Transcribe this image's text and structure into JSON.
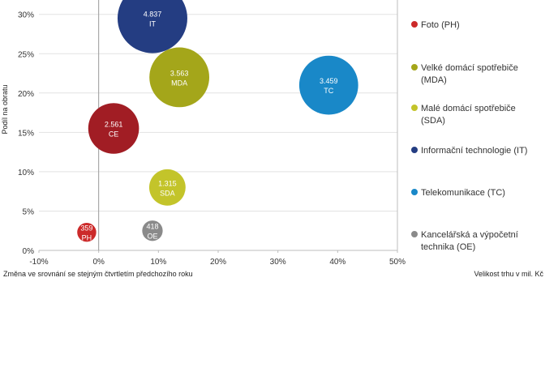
{
  "chart_data": {
    "type": "scatter",
    "subtype": "bubble",
    "title": "",
    "xlabel": "Změna ve srovnání se stejným čtvrtletím předchozího roku",
    "ylabel": "Podíl na obratu",
    "size_label": "Velikost trhu v mil. Kč",
    "xlim": [
      -0.1,
      0.5
    ],
    "ylim": [
      0,
      0.31
    ],
    "x_ticks": [
      -0.1,
      0,
      0.1,
      0.2,
      0.3,
      0.4,
      0.5
    ],
    "x_tick_labels": [
      "-10%",
      "0%",
      "10%",
      "20%",
      "30%",
      "40%",
      "50%"
    ],
    "y_ticks": [
      0,
      0.05,
      0.1,
      0.15,
      0.2,
      0.25,
      0.3
    ],
    "y_tick_labels": [
      "0%",
      "5%",
      "10%",
      "15%",
      "20%",
      "25%",
      "30%"
    ],
    "grid": "horizontal",
    "legend_position": "right",
    "series": [
      {
        "code": "PH",
        "name": "Foto (PH)",
        "x": -0.02,
        "y": 0.023,
        "size": 359,
        "size_label": "359",
        "color": "#cc2a2a"
      },
      {
        "code": "MDA",
        "name": "Velké domácí spotřebiče (MDA)",
        "x": 0.135,
        "y": 0.22,
        "size": 3563,
        "size_label": "3.563",
        "color": "#a4a61a"
      },
      {
        "code": "SDA",
        "name": "Malé domácí spotřebiče (SDA)",
        "x": 0.115,
        "y": 0.08,
        "size": 1315,
        "size_label": "1.315",
        "color": "#c3c42a"
      },
      {
        "code": "IT",
        "name": "Informační technologie (IT)",
        "x": 0.09,
        "y": 0.295,
        "size": 4837,
        "size_label": "4.837",
        "color": "#243d82"
      },
      {
        "code": "TC",
        "name": "Telekomunikace (TC)",
        "x": 0.385,
        "y": 0.21,
        "size": 3459,
        "size_label": "3.459",
        "color": "#1988c8"
      },
      {
        "code": "OE",
        "name": "Kancelářská a výpočetní technika (OE)",
        "x": 0.09,
        "y": 0.025,
        "size": 418,
        "size_label": "418",
        "color": "#8a8a8a"
      },
      {
        "code": "CE",
        "name": "",
        "x": 0.025,
        "y": 0.155,
        "size": 2561,
        "size_label": "2.561",
        "color": "#a11d24"
      }
    ]
  }
}
